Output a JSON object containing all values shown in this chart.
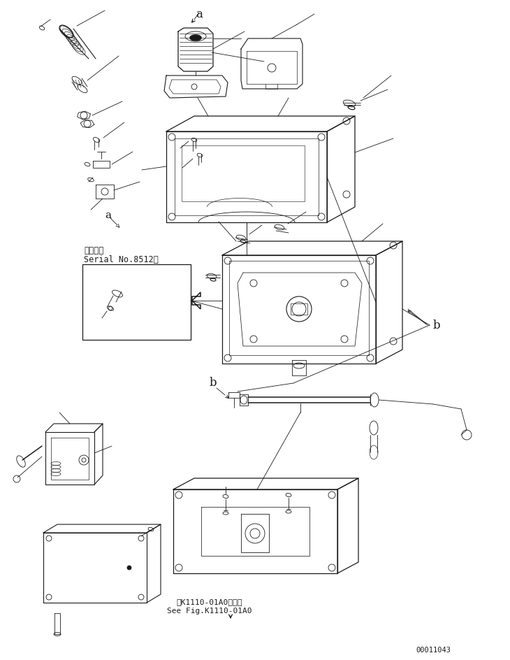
{
  "figure_width": 7.3,
  "figure_height": 9.44,
  "dpi": 100,
  "background_color": "#ffffff",
  "line_color": "#1a1a1a",
  "line_width": 0.6,
  "doc_number": "00011043",
  "serial_label_line1": "適用号機",
  "serial_label_line2": "Serial No.8512～",
  "ref_label_line1": "第K1110-01A0図参照",
  "ref_label_line2": "See Fig.K1110-01A0",
  "label_a": "a",
  "label_b": "b"
}
